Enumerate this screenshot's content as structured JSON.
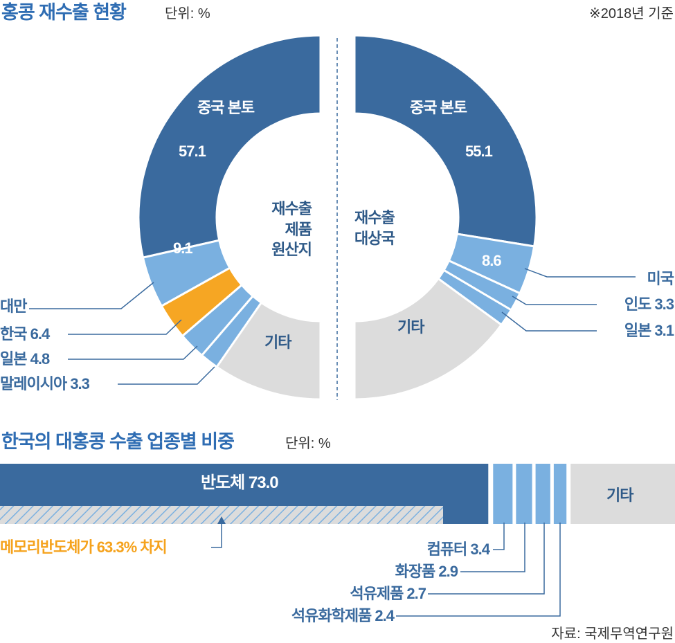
{
  "header": {
    "title": "홍콩 재수출 현황",
    "unit": "단위: %",
    "note": "※2018년 기준"
  },
  "colors": {
    "main": "#3a6a9e",
    "light": "#7ab0e0",
    "korea": "#f6a623",
    "other": "#dcdcdc",
    "title": "#2f6db3"
  },
  "chart_data": [
    {
      "type": "pie",
      "subtype": "half-donut",
      "title": "재수출 제품 원산지",
      "unit": "%",
      "labels": [
        "중국 본토",
        "대만",
        "한국",
        "일본",
        "말레이시아",
        "기타"
      ],
      "values": [
        57.1,
        9.1,
        6.4,
        4.8,
        3.3,
        null
      ],
      "display": {
        "china": "57.1",
        "taiwan": "9.1",
        "korea": "한국 6.4",
        "japan": "일본 4.8",
        "malaysia": "말레이시아 3.3",
        "taiwan_name": "대만",
        "china_name": "중국 본토",
        "other": "기타"
      },
      "center_lines": [
        "재수출",
        "제품",
        "원산지"
      ]
    },
    {
      "type": "pie",
      "subtype": "half-donut",
      "title": "재수출 대상국",
      "unit": "%",
      "labels": [
        "중국 본토",
        "미국",
        "인도",
        "일본",
        "기타"
      ],
      "values": [
        55.1,
        8.6,
        3.3,
        3.1,
        null
      ],
      "display": {
        "china": "55.1",
        "china_name": "중국 본토",
        "usa": "8.6",
        "usa_name": "미국",
        "india": "인도 3.3",
        "japan": "일본 3.1",
        "other": "기타"
      },
      "center_lines": [
        "재수출",
        "대상국"
      ]
    },
    {
      "type": "bar",
      "subtype": "stacked-100",
      "title": "한국의 대홍콩 수출 업종별 비중",
      "unit": "단위: %",
      "categories": [
        "반도체",
        "컴퓨터",
        "화장품",
        "석유제품",
        "석유화학제품",
        "기타"
      ],
      "values": [
        73.0,
        3.4,
        2.9,
        2.7,
        2.4,
        null
      ],
      "display": {
        "semi": "반도체 73.0",
        "computer": "컴퓨터 3.4",
        "cosmetics": "화장품 2.9",
        "petroleum": "석유제품 2.7",
        "petrochem": "석유화학제품 2.4",
        "other": "기타"
      },
      "annotation": "메모리반도체가 63.3% 차지"
    }
  ],
  "source": "자료: 국제무역연구원"
}
